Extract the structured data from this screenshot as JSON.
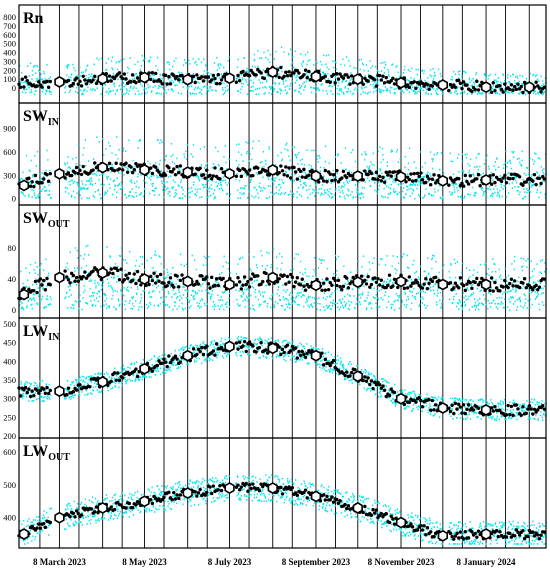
{
  "colors": {
    "background": "#ffffff",
    "halfhourly": "#00e5ee",
    "daily": "#000000",
    "monthly_fill": "#ffffff",
    "monthly_stroke": "#000000",
    "gridline": "#000000"
  },
  "chart_data": {
    "type": "scatter",
    "x_start": "2023-02-07",
    "x_end": "2024-02-20",
    "x_ticks": [
      {
        "date": "2023-03-08",
        "label": "8 March 2023"
      },
      {
        "date": "2023-05-08",
        "label": "8 May 2023"
      },
      {
        "date": "2023-07-08",
        "label": "8 July 2023"
      },
      {
        "date": "2023-09-08",
        "label": "8 September 2023"
      },
      {
        "date": "2023-11-08",
        "label": "8 November 2023"
      },
      {
        "date": "2024-01-08",
        "label": "8 January 2024"
      }
    ],
    "vertical_gridlines": [
      "2023-02-22",
      "2023-03-08",
      "2023-03-22",
      "2023-04-08",
      "2023-04-22",
      "2023-05-08",
      "2023-05-22",
      "2023-06-08",
      "2023-06-22",
      "2023-07-08",
      "2023-07-22",
      "2023-08-08",
      "2023-08-22",
      "2023-09-08",
      "2023-09-22",
      "2023-10-08",
      "2023-10-22",
      "2023-11-08",
      "2023-11-22",
      "2023-12-08",
      "2023-12-22",
      "2024-01-08",
      "2024-01-22",
      "2024-02-08"
    ],
    "series_names": [
      "half-hourly",
      "daily mean",
      "monthly mean"
    ],
    "panels": [
      {
        "id": "rn",
        "label": "Rn",
        "label_sub": "",
        "yticks": [
          "0",
          "100",
          "200",
          "300",
          "400",
          "500",
          "600",
          "700",
          "800"
        ],
        "ylim": [
          -100,
          800
        ],
        "halfhour_base": 60,
        "halfhour_amp": 620,
        "halfhour_floor": -70,
        "monthly": [
          {
            "date": "2023-03-08",
            "value": 70
          },
          {
            "date": "2023-04-08",
            "value": 105
          },
          {
            "date": "2023-05-08",
            "value": 120
          },
          {
            "date": "2023-06-08",
            "value": 95
          },
          {
            "date": "2023-07-08",
            "value": 110
          },
          {
            "date": "2023-08-08",
            "value": 180
          },
          {
            "date": "2023-09-08",
            "value": 130
          },
          {
            "date": "2023-10-08",
            "value": 100
          },
          {
            "date": "2023-11-08",
            "value": 60
          },
          {
            "date": "2023-12-08",
            "value": 35
          },
          {
            "date": "2024-01-08",
            "value": 10
          },
          {
            "date": "2024-02-08",
            "value": 10
          }
        ]
      },
      {
        "id": "swin",
        "label": "SW",
        "label_sub": "IN",
        "yticks": [
          "0",
          "300",
          "600",
          "900"
        ],
        "ylim": [
          -30,
          1050
        ],
        "halfhour_base": 0,
        "halfhour_amp": 900,
        "halfhour_floor": 0,
        "monthly": [
          {
            "date": "2023-02-07",
            "value": 170
          },
          {
            "date": "2023-03-08",
            "value": 320
          },
          {
            "date": "2023-04-08",
            "value": 400
          },
          {
            "date": "2023-05-08",
            "value": 370
          },
          {
            "date": "2023-06-08",
            "value": 340
          },
          {
            "date": "2023-07-08",
            "value": 320
          },
          {
            "date": "2023-08-08",
            "value": 370
          },
          {
            "date": "2023-09-08",
            "value": 290
          },
          {
            "date": "2023-10-08",
            "value": 290
          },
          {
            "date": "2023-11-08",
            "value": 280
          },
          {
            "date": "2023-12-08",
            "value": 230
          },
          {
            "date": "2024-01-08",
            "value": 240
          }
        ]
      },
      {
        "id": "swout",
        "label": "SW",
        "label_sub": "OUT",
        "yticks": [
          "0",
          "40",
          "80"
        ],
        "ylim": [
          -5,
          120
        ],
        "halfhour_base": 0,
        "halfhour_amp": 95,
        "halfhour_floor": 0,
        "monthly": [
          {
            "date": "2023-02-07",
            "value": 20
          },
          {
            "date": "2023-03-08",
            "value": 42
          },
          {
            "date": "2023-04-08",
            "value": 48
          },
          {
            "date": "2023-05-08",
            "value": 40
          },
          {
            "date": "2023-06-08",
            "value": 37
          },
          {
            "date": "2023-07-08",
            "value": 33
          },
          {
            "date": "2023-08-08",
            "value": 42
          },
          {
            "date": "2023-09-08",
            "value": 32
          },
          {
            "date": "2023-10-08",
            "value": 36
          },
          {
            "date": "2023-11-08",
            "value": 37
          },
          {
            "date": "2023-12-08",
            "value": 33
          },
          {
            "date": "2024-01-08",
            "value": 33
          }
        ]
      },
      {
        "id": "lwin",
        "label": "LW",
        "label_sub": "IN",
        "yticks": [
          "200",
          "250",
          "300",
          "350",
          "400",
          "450",
          "500"
        ],
        "ylim": [
          200,
          500
        ],
        "halfhour_base": 0,
        "halfhour_amp": 28,
        "halfhour_floor": 200,
        "monthly": [
          {
            "date": "2023-03-08",
            "value": 320
          },
          {
            "date": "2023-04-08",
            "value": 345
          },
          {
            "date": "2023-05-08",
            "value": 380
          },
          {
            "date": "2023-06-08",
            "value": 415
          },
          {
            "date": "2023-07-08",
            "value": 440
          },
          {
            "date": "2023-08-08",
            "value": 435
          },
          {
            "date": "2023-09-08",
            "value": 415
          },
          {
            "date": "2023-10-08",
            "value": 360
          },
          {
            "date": "2023-11-08",
            "value": 300
          },
          {
            "date": "2023-12-08",
            "value": 275
          },
          {
            "date": "2024-01-08",
            "value": 270
          }
        ]
      },
      {
        "id": "lwout",
        "label": "LW",
        "label_sub": "OUT",
        "yticks": [
          "400",
          "500",
          "600"
        ],
        "ylim": [
          320,
          600
        ],
        "halfhour_base": 0,
        "halfhour_amp": 40,
        "halfhour_floor": 320,
        "monthly": [
          {
            "date": "2023-02-07",
            "value": 350
          },
          {
            "date": "2023-03-08",
            "value": 400
          },
          {
            "date": "2023-04-08",
            "value": 430
          },
          {
            "date": "2023-05-08",
            "value": 450
          },
          {
            "date": "2023-06-08",
            "value": 475
          },
          {
            "date": "2023-07-08",
            "value": 490
          },
          {
            "date": "2023-08-08",
            "value": 490
          },
          {
            "date": "2023-09-08",
            "value": 465
          },
          {
            "date": "2023-10-08",
            "value": 430
          },
          {
            "date": "2023-11-08",
            "value": 385
          },
          {
            "date": "2023-12-08",
            "value": 345
          },
          {
            "date": "2024-01-08",
            "value": 350
          }
        ]
      }
    ]
  }
}
